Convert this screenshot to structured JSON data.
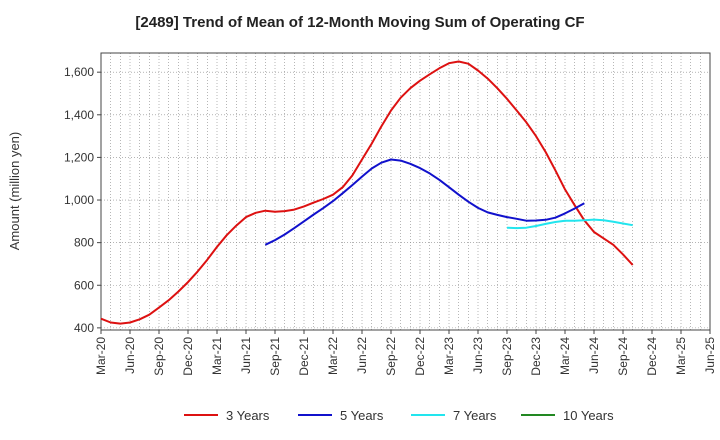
{
  "chart_data": {
    "type": "line",
    "title": "[2489]  Trend of Mean of 12-Month Moving Sum of Operating CF",
    "xlabel": "",
    "ylabel": "Amount (million yen)",
    "ylim": [
      390,
      1690
    ],
    "yticks": [
      400,
      600,
      800,
      1000,
      1200,
      1400,
      1600
    ],
    "ytick_labels": [
      "400",
      "600",
      "800",
      "1,000",
      "1,200",
      "1,400",
      "1,600"
    ],
    "x_month_count": 63,
    "xticks": [
      {
        "index": 0,
        "label": "Mar-20"
      },
      {
        "index": 3,
        "label": "Jun-20"
      },
      {
        "index": 6,
        "label": "Sep-20"
      },
      {
        "index": 9,
        "label": "Dec-20"
      },
      {
        "index": 12,
        "label": "Mar-21"
      },
      {
        "index": 15,
        "label": "Jun-21"
      },
      {
        "index": 18,
        "label": "Sep-21"
      },
      {
        "index": 21,
        "label": "Dec-21"
      },
      {
        "index": 24,
        "label": "Mar-22"
      },
      {
        "index": 27,
        "label": "Jun-22"
      },
      {
        "index": 30,
        "label": "Sep-22"
      },
      {
        "index": 33,
        "label": "Dec-22"
      },
      {
        "index": 36,
        "label": "Mar-23"
      },
      {
        "index": 39,
        "label": "Jun-23"
      },
      {
        "index": 42,
        "label": "Sep-23"
      },
      {
        "index": 45,
        "label": "Dec-23"
      },
      {
        "index": 48,
        "label": "Mar-24"
      },
      {
        "index": 51,
        "label": "Jun-24"
      },
      {
        "index": 54,
        "label": "Sep-24"
      },
      {
        "index": 57,
        "label": "Dec-24"
      },
      {
        "index": 60,
        "label": "Mar-25"
      },
      {
        "index": 63,
        "label": "Jun-25"
      }
    ],
    "grid": true,
    "legend_position": "bottom",
    "series": [
      {
        "name": "3 Years",
        "color": "#dd1111",
        "start_index": 0,
        "values": [
          443,
          425,
          420,
          425,
          440,
          462,
          495,
          530,
          570,
          615,
          665,
          720,
          780,
          835,
          880,
          920,
          940,
          950,
          945,
          948,
          955,
          970,
          988,
          1005,
          1025,
          1060,
          1115,
          1190,
          1265,
          1345,
          1420,
          1480,
          1525,
          1560,
          1590,
          1618,
          1642,
          1650,
          1640,
          1608,
          1570,
          1525,
          1475,
          1420,
          1365,
          1300,
          1225,
          1140,
          1050,
          975,
          905,
          850,
          820,
          790,
          745,
          695
        ]
      },
      {
        "name": "5 Years",
        "color": "#1111cc",
        "start_index": 17,
        "values": [
          790,
          812,
          838,
          868,
          900,
          932,
          962,
          995,
          1032,
          1070,
          1110,
          1148,
          1175,
          1190,
          1185,
          1170,
          1150,
          1125,
          1095,
          1060,
          1025,
          992,
          963,
          942,
          930,
          920,
          912,
          903,
          904,
          907,
          917,
          937,
          960,
          985
        ]
      },
      {
        "name": "7 Years",
        "color": "#22e5ee",
        "start_index": 42,
        "values": [
          870,
          868,
          870,
          878,
          888,
          897,
          903,
          903,
          905,
          908,
          905,
          898,
          890,
          882
        ]
      },
      {
        "name": "10 Years",
        "color": "#228822",
        "start_index": 0,
        "values": []
      }
    ]
  }
}
